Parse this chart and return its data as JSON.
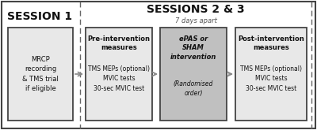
{
  "bg_color": "#ffffff",
  "border_color": "#444444",
  "dash_color": "#666666",
  "box_light_fill": "#e8e8e8",
  "box_medium_fill": "#c0c0c0",
  "arrow_color": "#888888",
  "text_color": "#111111",
  "session1_title": "SESSION 1",
  "sessions23_title": "SESSIONS 2 & 3",
  "sessions23_subtitle": "7 days apart",
  "box1_text": "MRCP\nrecording\n& TMS trial\nif eligible",
  "box2_title": "Pre-intervention\nmeasures",
  "box2_body": "TMS MEPs (optional)\nMVIC tests\n30-sec MVIC test",
  "box3_title": "ePAS or\nSHAM\nintervention",
  "box3_body": "(Randomised\norder)",
  "box4_title": "Post-intervention\nmeasures",
  "box4_body": "TMS MEPs (optional)\nMVIC tests\n30-sec MVIC test",
  "figw": 4.0,
  "figh": 1.65,
  "dpi": 100
}
